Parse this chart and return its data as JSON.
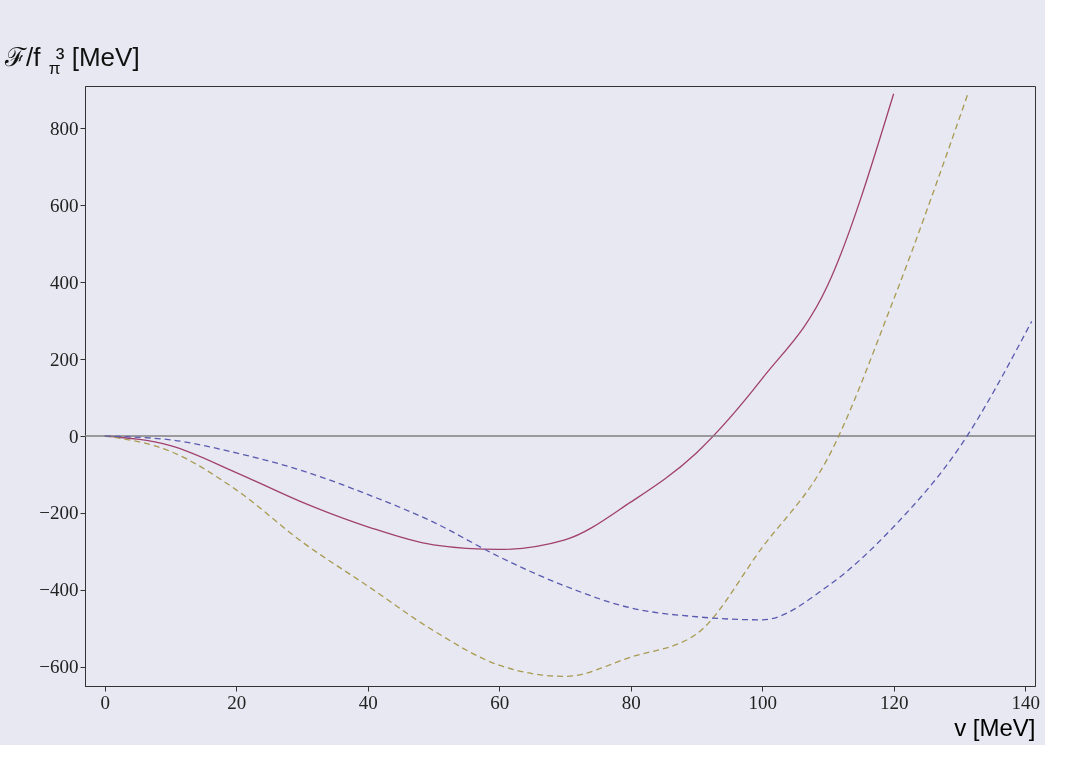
{
  "chart_data": {
    "type": "line",
    "ylabel": "ℱ/f$_{π}$³ [MeV]",
    "xlabel": "v [MeV]",
    "xlim": [
      -3,
      141.5
    ],
    "ylim": [
      -650,
      910
    ],
    "xticks": [
      0,
      20,
      40,
      60,
      80,
      100,
      120,
      140
    ],
    "yticks": [
      -600,
      -400,
      -200,
      0,
      200,
      400,
      600,
      800
    ],
    "grid": false,
    "ref_lines": [
      {
        "axis": "y",
        "value": 0,
        "color": "#808080",
        "line_style": "solid"
      }
    ],
    "series": [
      {
        "color": "#a0406e",
        "line_style": "solid",
        "x": [
          0,
          10,
          20,
          30,
          40,
          50,
          60,
          70,
          80,
          90,
          100,
          110,
          120
        ],
        "values": [
          0,
          -25,
          -95,
          -172,
          -236,
          -283,
          -295,
          -270,
          -172,
          -44,
          149,
          393,
          890
        ]
      },
      {
        "color": "#a89a50",
        "line_style": "dashed",
        "x": [
          0,
          10,
          20,
          30,
          40,
          50,
          60,
          70,
          80,
          90,
          100,
          110,
          120,
          131.4
        ],
        "values": [
          0,
          -40,
          -140,
          -275,
          -390,
          -506,
          -596,
          -625,
          -575,
          -515,
          -290,
          -57,
          355,
          895
        ]
      },
      {
        "color": "#5a5ab0",
        "line_style": "dashed",
        "x": [
          0,
          10,
          20,
          30,
          40,
          50,
          60,
          70,
          80,
          90,
          100,
          110,
          120,
          130,
          141
        ],
        "values": [
          0,
          -10,
          -44,
          -90,
          -152,
          -224,
          -314,
          -390,
          -447,
          -470,
          -478,
          -390,
          -236,
          -30,
          298
        ]
      }
    ]
  }
}
